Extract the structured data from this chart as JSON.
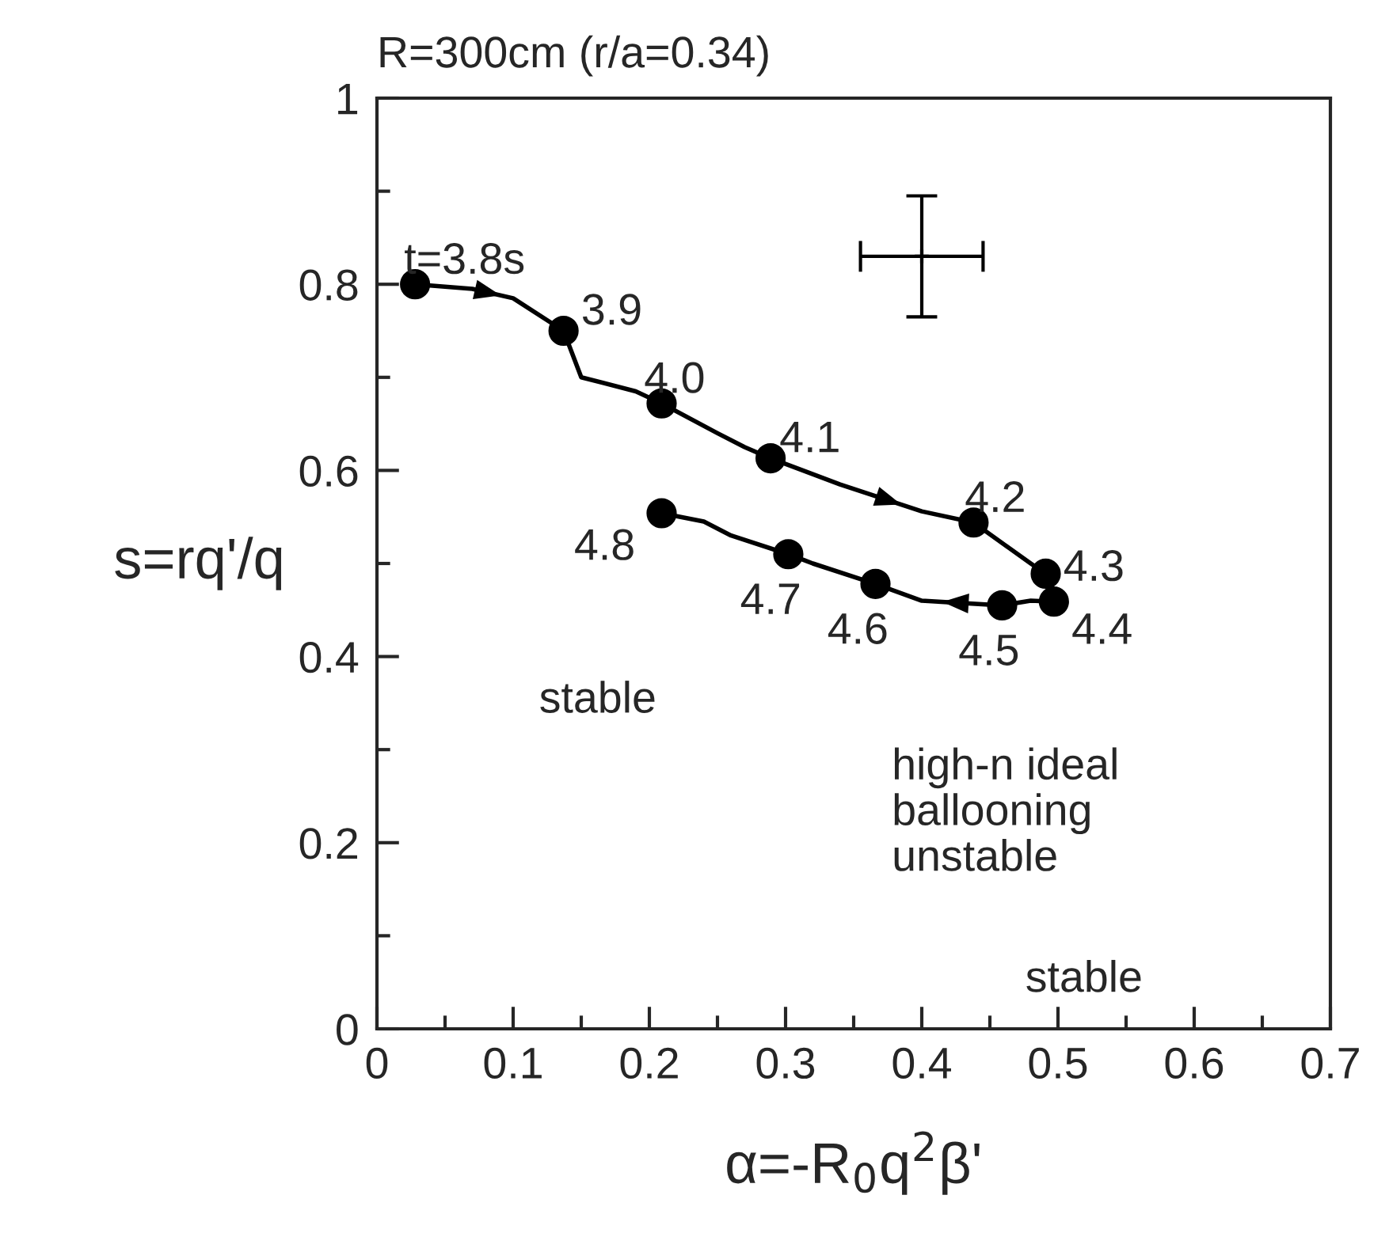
{
  "chart_data": {
    "type": "line",
    "title": "R=300cm (r/a=0.34)",
    "xlabel": "α=-R$_{0}$q$^{2}$β'",
    "ylabel": "s=rq'/q",
    "xlim": [
      0,
      0.7
    ],
    "xticks": [
      0,
      0.1,
      0.2,
      0.3,
      0.4,
      0.5,
      0.6,
      0.7
    ],
    "ylim": [
      0,
      1
    ],
    "yticks": [
      0,
      0.2,
      0.4,
      0.6,
      0.8,
      1
    ],
    "grid": false,
    "legend": false,
    "series": [
      {
        "color": "#000000",
        "marker": "none",
        "line_style": "solid",
        "x": [
          0.028,
          0.07,
          0.1,
          0.137,
          0.15,
          0.19,
          0.209,
          0.25,
          0.27,
          0.289,
          0.34,
          0.4,
          0.438,
          0.48,
          0.491,
          0.497,
          0.48,
          0.459,
          0.4,
          0.366,
          0.32,
          0.302,
          0.26,
          0.24,
          0.209
        ],
        "values": [
          0.8,
          0.795,
          0.785,
          0.75,
          0.7,
          0.685,
          0.672,
          0.64,
          0.625,
          0.613,
          0.585,
          0.556,
          0.544,
          0.5,
          0.489,
          0.459,
          0.46,
          0.455,
          0.46,
          0.478,
          0.5,
          0.51,
          0.53,
          0.545,
          0.554
        ]
      },
      {
        "type": "scatter",
        "color": "#000000",
        "marker": "circle",
        "x": [
          0.028,
          0.137,
          0.209,
          0.289,
          0.438,
          0.491,
          0.497,
          0.459,
          0.366,
          0.302,
          0.209
        ],
        "values": [
          0.8,
          0.75,
          0.672,
          0.613,
          0.544,
          0.489,
          0.459,
          0.455,
          0.478,
          0.51,
          0.554
        ]
      },
      {
        "type": "scatter",
        "color": "#000000",
        "marker": "cross",
        "x": [
          0.4
        ],
        "values": [
          0.83
        ],
        "errors": [
          0.065
        ],
        "xerrors": [
          0.045
        ]
      }
    ],
    "annotations": [
      {
        "text": "t=3.8s",
        "x": 0.028,
        "y": 0.8
      },
      {
        "text": "3.9",
        "x": 0.137,
        "y": 0.75
      },
      {
        "text": "4.0",
        "x": 0.209,
        "y": 0.672
      },
      {
        "text": "4.1",
        "x": 0.289,
        "y": 0.613
      },
      {
        "text": "4.2",
        "x": 0.438,
        "y": 0.544
      },
      {
        "text": "4.3",
        "x": 0.491,
        "y": 0.489
      },
      {
        "text": "4.4",
        "x": 0.497,
        "y": 0.459
      },
      {
        "text": "4.5",
        "x": 0.459,
        "y": 0.455
      },
      {
        "text": "4.6",
        "x": 0.366,
        "y": 0.478
      },
      {
        "text": "4.7",
        "x": 0.302,
        "y": 0.51
      },
      {
        "text": "4.8",
        "x": 0.209,
        "y": 0.554
      },
      "stable",
      "high-n ideal\nballooning\nunstable",
      "stable"
    ]
  }
}
